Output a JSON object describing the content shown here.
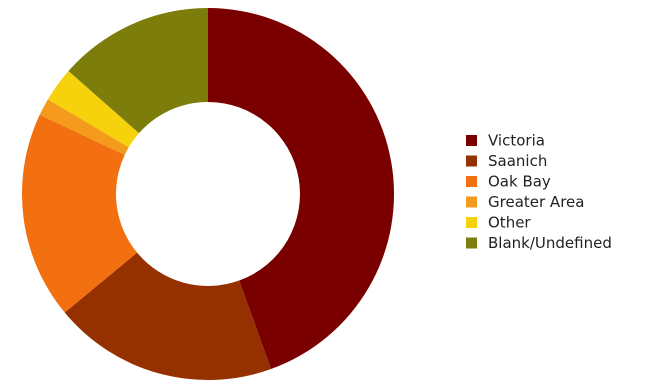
{
  "chart_data": {
    "type": "pie",
    "variant": "donut",
    "title": "",
    "categories": [
      "Victoria",
      "Saanich",
      "Oak Bay",
      "Greater Area",
      "Other",
      "Blank/Undefined"
    ],
    "values": [
      44.5,
      19.5,
      18,
      1.5,
      3,
      13.5
    ],
    "colors": [
      "#7a0000",
      "#953100",
      "#f2700f",
      "#f49a1c",
      "#f5d20b",
      "#7c7d0b"
    ],
    "legend_position": "right",
    "start": "top",
    "direction": "clockwise"
  }
}
